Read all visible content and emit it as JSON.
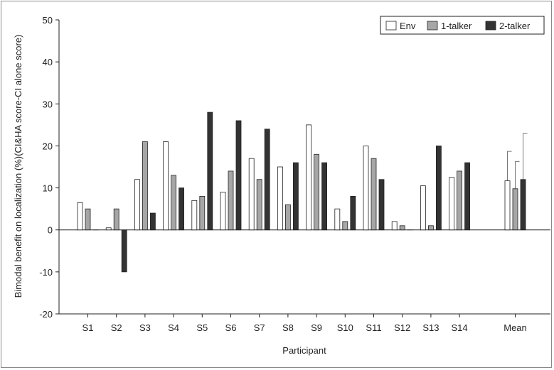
{
  "chart_data": {
    "type": "bar",
    "xlabel": "Participant",
    "ylabel": "Bimodal benefit on localization (%)(CI&HA score-CI alone score)",
    "ylim": [
      -20,
      50
    ],
    "yticks": [
      -20,
      -10,
      0,
      10,
      20,
      30,
      40,
      50
    ],
    "grid": false,
    "legend_position": "top-right",
    "categories": [
      "S1",
      "S2",
      "S3",
      "S4",
      "S5",
      "S6",
      "S7",
      "S8",
      "S9",
      "S10",
      "S11",
      "S12",
      "S13",
      "S14",
      "Mean"
    ],
    "series": [
      {
        "name": "Env",
        "color": "#ffffff",
        "stroke": "#222222",
        "values": [
          6.5,
          0.5,
          12,
          21,
          7,
          9,
          17,
          15,
          25,
          5,
          20,
          2,
          10.5,
          12.5,
          11.7
        ],
        "error_upper": [
          null,
          null,
          null,
          null,
          null,
          null,
          null,
          null,
          null,
          null,
          null,
          null,
          null,
          null,
          7
        ]
      },
      {
        "name": "1-talker",
        "color": "#a6a6a6",
        "stroke": "#222222",
        "values": [
          5,
          5,
          21,
          13,
          8,
          14,
          12,
          6,
          18,
          2,
          17,
          1,
          1,
          14,
          9.8
        ],
        "error_upper": [
          null,
          null,
          null,
          null,
          null,
          null,
          null,
          null,
          null,
          null,
          null,
          null,
          null,
          null,
          6.5
        ]
      },
      {
        "name": "2-talker",
        "color": "#333333",
        "stroke": "#222222",
        "values": [
          0,
          -10,
          4,
          10,
          28,
          26,
          24,
          16,
          16,
          8,
          12,
          0,
          20,
          16,
          12
        ],
        "error_upper": [
          null,
          null,
          null,
          null,
          null,
          null,
          null,
          null,
          null,
          null,
          null,
          null,
          null,
          null,
          11
        ]
      }
    ]
  }
}
